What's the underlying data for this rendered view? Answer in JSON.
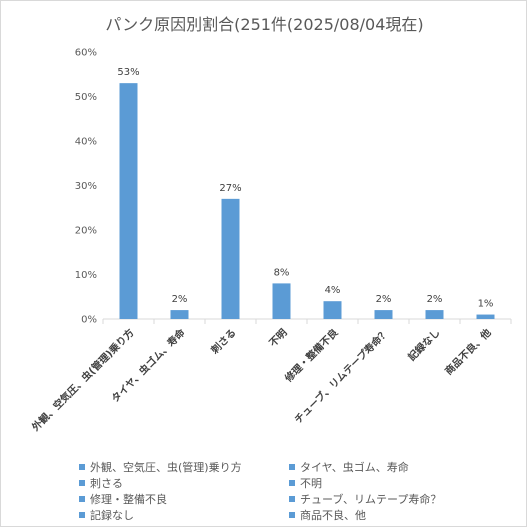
{
  "chart_data": {
    "type": "bar",
    "title": "パンク原因別割合(251件(2025/08/04現在)",
    "categories": [
      "外観、空気圧、虫(管理)乗り方",
      "タイヤ、虫ゴム、寿命",
      "刺さる",
      "不明",
      "修理・整備不良",
      "チューブ、リムテープ寿命？",
      "記録なし",
      "商品不良、他"
    ],
    "values": [
      53,
      2,
      27,
      8,
      4,
      2,
      2,
      1
    ],
    "data_labels": [
      "53%",
      "2%",
      "27%",
      "8%",
      "4%",
      "2%",
      "2%",
      "1%"
    ],
    "yticks": [
      "0%",
      "10%",
      "20%",
      "30%",
      "40%",
      "50%",
      "60%"
    ],
    "ylim": [
      0,
      60
    ],
    "xlabel": "",
    "ylabel": "",
    "grid": false,
    "legend_position": "bottom",
    "bar_color": "#5b9bd5"
  }
}
